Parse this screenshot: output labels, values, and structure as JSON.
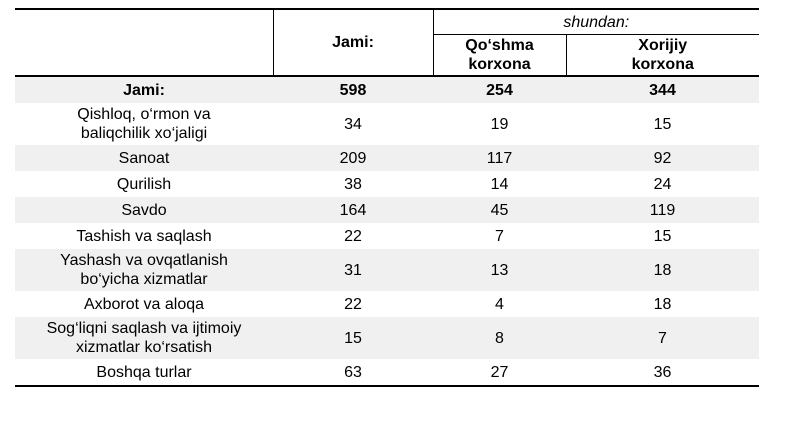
{
  "header": {
    "jami": "Jami:",
    "shundan": "shundan:",
    "qoshma": "Qo‘shma korxona",
    "xorijiy": "Xorijiy korxona"
  },
  "rows": [
    {
      "label": "Jami:",
      "jami": "598",
      "qoshma": "254",
      "xorijiy": "344"
    },
    {
      "label": "Qishloq, o‘rmon  va baliqchilik xo‘jaligi",
      "jami": "34",
      "qoshma": "19",
      "xorijiy": "15"
    },
    {
      "label": "Sanoat",
      "jami": "209",
      "qoshma": "117",
      "xorijiy": "92"
    },
    {
      "label": "Qurilish",
      "jami": "38",
      "qoshma": "14",
      "xorijiy": "24"
    },
    {
      "label": "Savdo",
      "jami": "164",
      "qoshma": "45",
      "xorijiy": "119"
    },
    {
      "label": "Tashish va saqlash",
      "jami": "22",
      "qoshma": "7",
      "xorijiy": "15"
    },
    {
      "label": "Yashash va ovqatlanish bo‘yicha  xizmatlar",
      "jami": "31",
      "qoshma": "13",
      "xorijiy": "18"
    },
    {
      "label": "Axborot va aloqa",
      "jami": "22",
      "qoshma": "4",
      "xorijiy": "18"
    },
    {
      "label": "Sog‘liqni saqlash va ijtimoiy xizmatlar ko‘rsatish",
      "jami": "15",
      "qoshma": "8",
      "xorijiy": "7"
    },
    {
      "label": "Boshqa turlar",
      "jami": "63",
      "qoshma": "27",
      "xorijiy": "36"
    }
  ]
}
